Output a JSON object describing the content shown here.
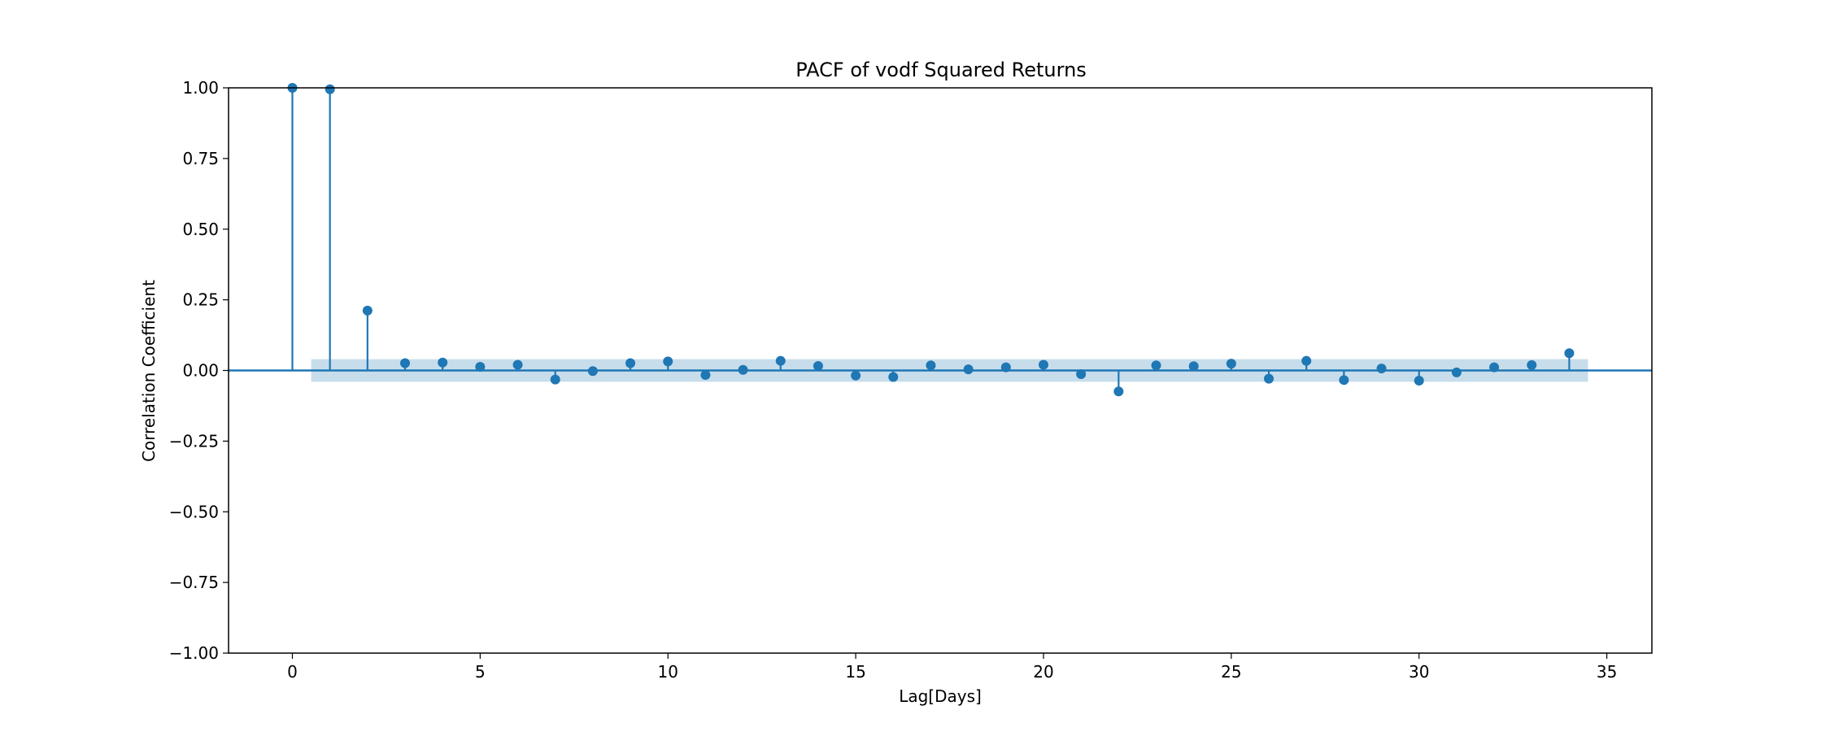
{
  "chart_data": {
    "type": "stem",
    "title": "PACF of vodf Squared Returns",
    "xlabel": "Lag[Days]",
    "ylabel": "Correlation Coefficient",
    "xlim": [
      -1.7,
      36.2
    ],
    "ylim": [
      -1.0,
      1.0
    ],
    "x_ticks": [
      0,
      5,
      10,
      15,
      20,
      25,
      30,
      35
    ],
    "y_ticks": [
      1.0,
      0.75,
      0.5,
      0.25,
      0.0,
      -0.25,
      -0.5,
      -0.75,
      -1.0
    ],
    "x_tick_labels": [
      "0",
      "5",
      "10",
      "15",
      "20",
      "25",
      "30",
      "35"
    ],
    "y_tick_labels": [
      "1.00",
      "0.75",
      "0.50",
      "0.25",
      "0.00",
      "−0.25",
      "−0.50",
      "−0.75",
      "−1.00"
    ],
    "confidence_band": {
      "x_range": [
        0.5,
        34.5
      ],
      "lower": -0.04,
      "upper": 0.04
    },
    "lags": [
      0,
      1,
      2,
      3,
      4,
      5,
      6,
      7,
      8,
      9,
      10,
      11,
      12,
      13,
      14,
      15,
      16,
      17,
      18,
      19,
      20,
      21,
      22,
      23,
      24,
      25,
      26,
      27,
      28,
      29,
      30,
      31,
      32,
      33,
      34
    ],
    "values": [
      1.0,
      0.995,
      0.212,
      0.026,
      0.028,
      0.013,
      0.02,
      -0.032,
      -0.002,
      0.026,
      0.032,
      -0.016,
      0.002,
      0.034,
      0.016,
      -0.018,
      -0.023,
      0.018,
      0.004,
      0.011,
      0.02,
      -0.013,
      -0.074,
      0.018,
      0.015,
      0.024,
      -0.029,
      0.034,
      -0.034,
      0.007,
      -0.036,
      -0.007,
      0.011,
      0.019,
      0.061
    ],
    "grid": false,
    "colors": {
      "stem": "#1f77b4",
      "band": "#1f77b4"
    }
  }
}
